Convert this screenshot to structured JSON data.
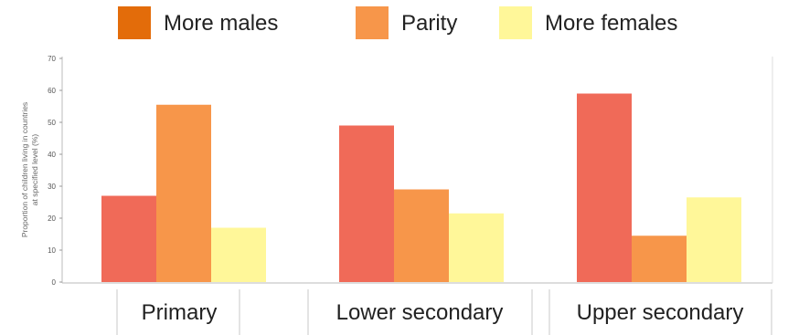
{
  "chart_data": {
    "type": "bar",
    "title": "",
    "xlabel": "",
    "ylabel": "Proportion of children living in countries at specified level (%)",
    "ylabel_lines": [
      "Proportion of children living in countries",
      "at specified level (%)"
    ],
    "ylim": [
      0,
      70
    ],
    "yticks": [
      0,
      10,
      20,
      30,
      40,
      50,
      60,
      70
    ],
    "grid": false,
    "legend_position": "top",
    "categories": [
      "Primary",
      "Lower secondary",
      "Upper secondary"
    ],
    "series": [
      {
        "name": "More males",
        "values": [
          27,
          49,
          59
        ],
        "color": "#f06a58",
        "legend_color": "#e36c0a"
      },
      {
        "name": "Parity",
        "values": [
          55.5,
          29,
          14.5
        ],
        "color": "#f7964a",
        "legend_color": "#f7964a"
      },
      {
        "name": "More females",
        "values": [
          17,
          21.5,
          26.5
        ],
        "color": "#fff799",
        "legend_color": "#fff799"
      }
    ]
  }
}
